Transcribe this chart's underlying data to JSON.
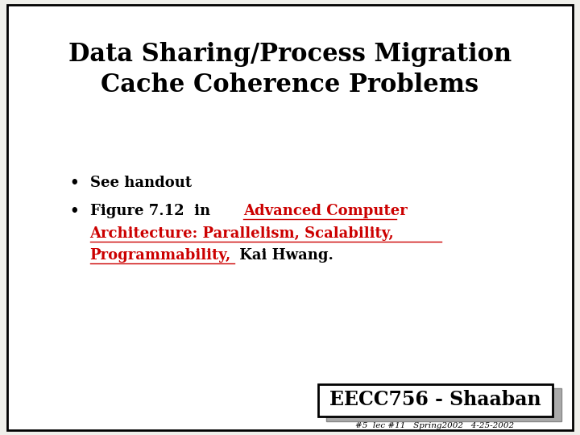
{
  "title_line1": "Data Sharing/Process Migration",
  "title_line2": "Cache Coherence Problems",
  "bullet1": "See handout",
  "bullet2_prefix": "Figure 7.12  in  ",
  "bullet2_red_part1": "Advanced Computer",
  "bullet2_red_part2": "Architecture: Parallelism, Scalability,",
  "bullet2_red_part3": "Programmability,",
  "bullet2_black_suffix": " Kai Hwang.",
  "footer_main": "EECC756 - Shaaban",
  "footer_sub": "#5  lec #11   Spring2002   4-25-2002",
  "bg_color": "#f0f0eb",
  "slide_bg": "#ffffff",
  "border_color": "#000000",
  "title_color": "#000000",
  "bullet_color": "#000000",
  "red_color": "#cc0000",
  "fig_width": 7.2,
  "fig_height": 5.4,
  "dpi": 100
}
